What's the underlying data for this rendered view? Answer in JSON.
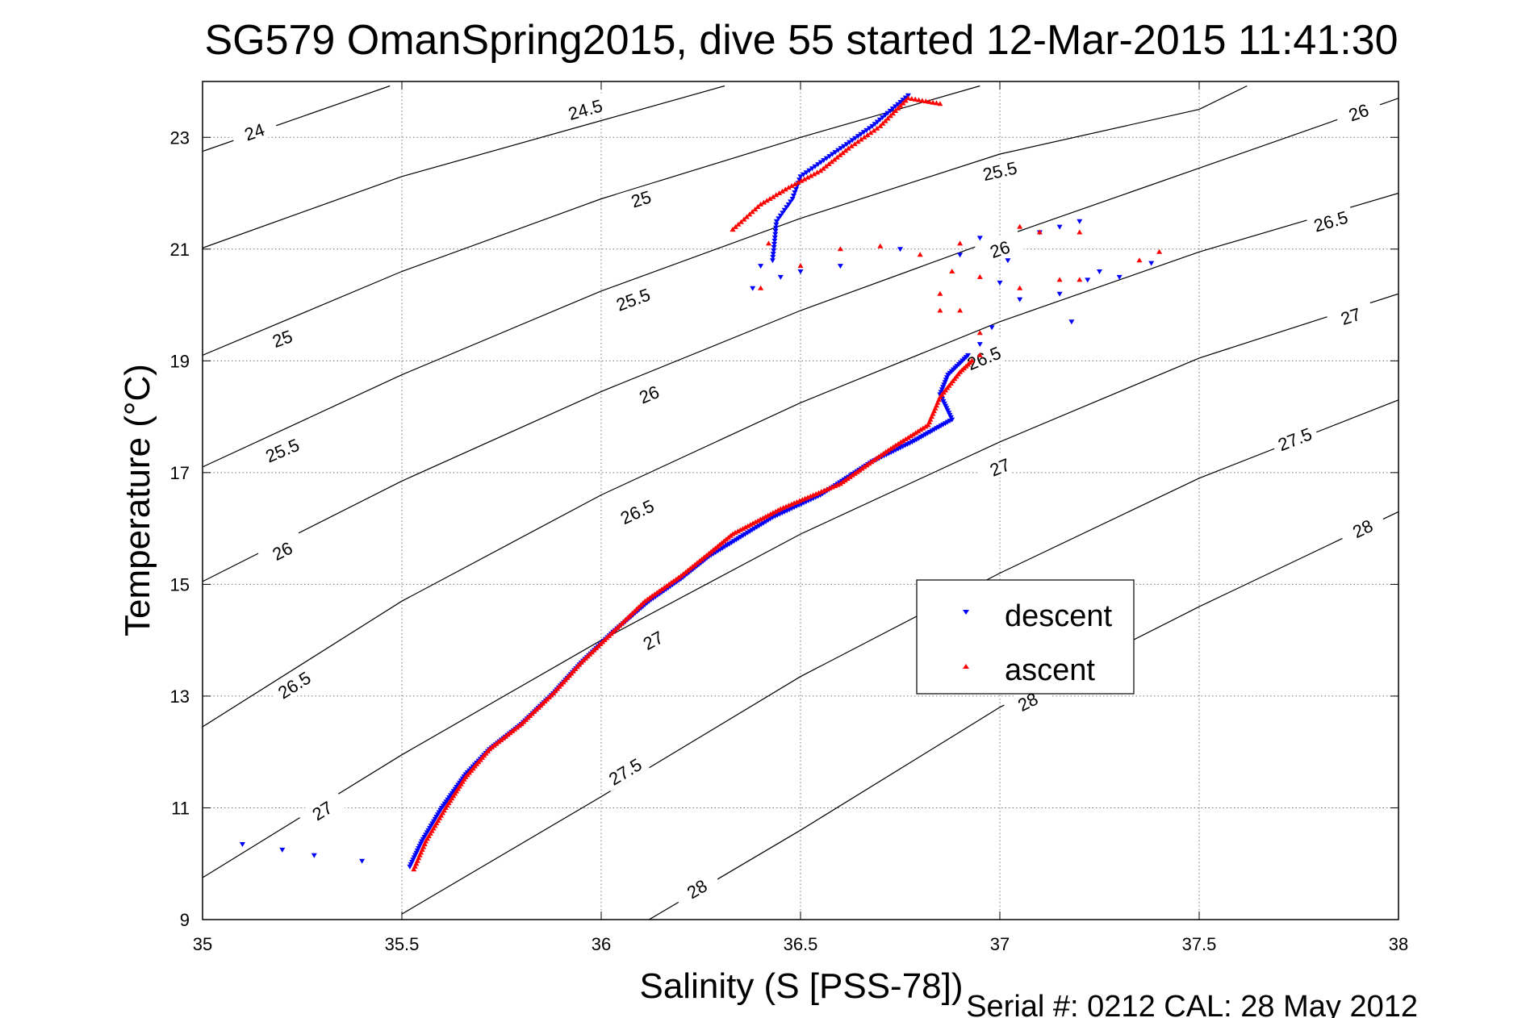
{
  "chart_data": {
    "type": "scatter",
    "title": "SG579 OmanSpring2015, dive 55 started 12-Mar-2015 11:41:30",
    "xlabel": "Salinity (S [PSS-78])",
    "ylabel": "Temperature (°C)",
    "footer": "Serial #: 0212  CAL: 28 May 2012",
    "xlim": [
      35,
      38
    ],
    "ylim": [
      9,
      24
    ],
    "xticks": [
      "35",
      "35.5",
      "36",
      "36.5",
      "37",
      "37.5",
      "38"
    ],
    "yticks": [
      "9",
      "11",
      "13",
      "15",
      "17",
      "19",
      "21",
      "23"
    ],
    "grid": "dotted",
    "legend_position": "center-right",
    "density_contours": [
      {
        "label": "24",
        "points": [
          [
            35.0,
            22.75
          ],
          [
            35.47,
            23.92
          ]
        ],
        "label_at": [
          35.13,
          23.1
        ]
      },
      {
        "label": "24.5",
        "points": [
          [
            35.0,
            21.02
          ],
          [
            35.5,
            22.3
          ],
          [
            36.0,
            23.3
          ],
          [
            36.31,
            23.92
          ]
        ],
        "label_at": [
          35.96,
          23.5
        ]
      },
      {
        "label": "25",
        "points": [
          [
            35.0,
            21.02
          ],
          [
            35.5,
            22.3
          ],
          [
            36.0,
            23.3
          ],
          [
            36.31,
            23.92
          ]
        ],
        "label_at": [
          35.2,
          19.4
        ]
      },
      {
        "label": "25",
        "points": [
          [
            35.0,
            19.1
          ],
          [
            35.5,
            20.6
          ],
          [
            36.0,
            21.9
          ],
          [
            36.5,
            23.0
          ],
          [
            36.95,
            23.92
          ]
        ],
        "label_at": [
          36.1,
          21.9
        ]
      },
      {
        "label": "25.5",
        "points": [
          [
            35.0,
            19.1
          ],
          [
            35.5,
            20.6
          ],
          [
            36.0,
            21.9
          ],
          [
            36.5,
            23.0
          ],
          [
            36.95,
            23.92
          ]
        ],
        "label_at": [
          35.2,
          17.4
        ]
      },
      {
        "label": "25.5",
        "points": [
          [
            35.0,
            17.1
          ],
          [
            35.5,
            18.75
          ],
          [
            36.0,
            20.25
          ],
          [
            36.5,
            21.55
          ],
          [
            37.0,
            22.7
          ],
          [
            37.5,
            23.5
          ],
          [
            37.62,
            23.92
          ]
        ],
        "label_at": [
          36.08,
          20.1
        ]
      },
      {
        "label": "25.5",
        "points": [
          [
            35.0,
            17.1
          ],
          [
            35.5,
            18.75
          ],
          [
            36.0,
            20.25
          ],
          [
            36.5,
            21.55
          ],
          [
            37.0,
            22.7
          ],
          [
            37.5,
            23.5
          ],
          [
            37.62,
            23.92
          ]
        ],
        "label_at": [
          37.0,
          22.4
        ]
      },
      {
        "label": "26",
        "points": [
          [
            35.0,
            15.05
          ],
          [
            35.5,
            16.85
          ],
          [
            36.0,
            18.45
          ],
          [
            36.5,
            19.9
          ],
          [
            37.0,
            21.2
          ],
          [
            37.5,
            22.45
          ],
          [
            38.0,
            23.7
          ]
        ],
        "label_at": [
          35.2,
          15.6
        ]
      },
      {
        "label": "26",
        "points": [
          [
            35.0,
            15.05
          ],
          [
            35.5,
            16.85
          ],
          [
            36.0,
            18.45
          ],
          [
            36.5,
            19.9
          ],
          [
            37.0,
            21.2
          ],
          [
            37.5,
            22.45
          ],
          [
            38.0,
            23.7
          ]
        ],
        "label_at": [
          36.12,
          18.4
        ]
      },
      {
        "label": "26",
        "points": [
          [
            35.0,
            15.05
          ],
          [
            35.5,
            16.85
          ],
          [
            36.0,
            18.45
          ],
          [
            36.5,
            19.9
          ],
          [
            37.0,
            21.2
          ],
          [
            37.5,
            22.45
          ],
          [
            38.0,
            23.7
          ]
        ],
        "label_at": [
          37.0,
          21.0
        ]
      },
      {
        "label": "26",
        "points": [
          [
            35.0,
            15.05
          ],
          [
            35.5,
            16.85
          ],
          [
            36.0,
            18.45
          ],
          [
            36.5,
            19.9
          ],
          [
            37.0,
            21.2
          ],
          [
            37.5,
            22.45
          ],
          [
            38.0,
            23.7
          ]
        ],
        "label_at": [
          37.9,
          23.45
        ]
      },
      {
        "label": "26.5",
        "points": [
          [
            35.0,
            12.45
          ],
          [
            35.5,
            14.7
          ],
          [
            36.0,
            16.6
          ],
          [
            36.5,
            18.25
          ],
          [
            37.0,
            19.7
          ],
          [
            37.5,
            20.95
          ],
          [
            38.0,
            22.0
          ]
        ],
        "label_at": [
          35.23,
          13.2
        ]
      },
      {
        "label": "26.5",
        "points": [
          [
            35.0,
            12.45
          ],
          [
            35.5,
            14.7
          ],
          [
            36.0,
            16.6
          ],
          [
            36.5,
            18.25
          ],
          [
            37.0,
            19.7
          ],
          [
            37.5,
            20.95
          ],
          [
            38.0,
            22.0
          ]
        ],
        "label_at": [
          36.09,
          16.3
        ]
      },
      {
        "label": "26.5",
        "points": [
          [
            35.0,
            12.45
          ],
          [
            35.5,
            14.7
          ],
          [
            36.0,
            16.6
          ],
          [
            36.5,
            18.25
          ],
          [
            37.0,
            19.7
          ],
          [
            37.5,
            20.95
          ],
          [
            38.0,
            22.0
          ]
        ],
        "label_at": [
          36.96,
          19.05
        ]
      },
      {
        "label": "26.5",
        "points": [
          [
            35.0,
            12.45
          ],
          [
            35.5,
            14.7
          ],
          [
            36.0,
            16.6
          ],
          [
            36.5,
            18.25
          ],
          [
            37.0,
            19.7
          ],
          [
            37.5,
            20.95
          ],
          [
            38.0,
            22.0
          ]
        ],
        "label_at": [
          37.83,
          21.5
        ]
      },
      {
        "label": "27",
        "points": [
          [
            35.0,
            9.75
          ],
          [
            35.5,
            11.95
          ],
          [
            36.0,
            14.0
          ],
          [
            36.5,
            15.9
          ],
          [
            37.0,
            17.55
          ],
          [
            37.5,
            19.05
          ],
          [
            38.0,
            20.2
          ]
        ],
        "label_at": [
          35.3,
          10.95
        ]
      },
      {
        "label": "27",
        "points": [
          [
            35.0,
            9.75
          ],
          [
            35.5,
            11.95
          ],
          [
            36.0,
            14.0
          ],
          [
            36.5,
            15.9
          ],
          [
            37.0,
            17.55
          ],
          [
            37.5,
            19.05
          ],
          [
            38.0,
            20.2
          ]
        ],
        "label_at": [
          36.13,
          14.0
        ]
      },
      {
        "label": "27",
        "points": [
          [
            35.0,
            9.75
          ],
          [
            35.5,
            11.95
          ],
          [
            36.0,
            14.0
          ],
          [
            36.5,
            15.9
          ],
          [
            37.0,
            17.55
          ],
          [
            37.5,
            19.05
          ],
          [
            38.0,
            20.2
          ]
        ],
        "label_at": [
          37.0,
          17.1
        ]
      },
      {
        "label": "27",
        "points": [
          [
            35.0,
            9.75
          ],
          [
            35.5,
            11.95
          ],
          [
            36.0,
            14.0
          ],
          [
            36.5,
            15.9
          ],
          [
            37.0,
            17.55
          ],
          [
            37.5,
            19.05
          ],
          [
            38.0,
            20.2
          ]
        ],
        "label_at": [
          37.88,
          19.8
        ]
      },
      {
        "label": "27.5",
        "points": [
          [
            35.5,
            9.1
          ],
          [
            36.0,
            11.2
          ],
          [
            36.5,
            13.35
          ],
          [
            37.0,
            15.2
          ],
          [
            37.5,
            16.9
          ],
          [
            38.0,
            18.3
          ]
        ],
        "label_at": [
          36.06,
          11.65
        ]
      },
      {
        "label": "27.5",
        "points": [
          [
            35.5,
            9.1
          ],
          [
            36.0,
            11.2
          ],
          [
            36.5,
            13.35
          ],
          [
            37.0,
            15.2
          ],
          [
            37.5,
            16.9
          ],
          [
            38.0,
            18.3
          ]
        ],
        "label_at": [
          37.74,
          17.6
        ]
      },
      {
        "label": "28",
        "points": [
          [
            36.12,
            9.0
          ],
          [
            36.5,
            10.6
          ],
          [
            37.0,
            12.8
          ],
          [
            37.5,
            14.6
          ],
          [
            38.0,
            16.3
          ]
        ],
        "label_at": [
          36.24,
          9.55
        ]
      },
      {
        "label": "28",
        "points": [
          [
            36.12,
            9.0
          ],
          [
            36.5,
            10.6
          ],
          [
            37.0,
            12.8
          ],
          [
            37.5,
            14.6
          ],
          [
            38.0,
            16.3
          ]
        ],
        "label_at": [
          37.07,
          12.9
        ]
      },
      {
        "label": "28",
        "points": [
          [
            36.12,
            9.0
          ],
          [
            36.5,
            10.6
          ],
          [
            37.0,
            12.8
          ],
          [
            37.5,
            14.6
          ],
          [
            38.0,
            16.3
          ]
        ],
        "label_at": [
          37.91,
          16.0
        ]
      }
    ],
    "series": [
      {
        "name": "descent",
        "color": "#0000ff",
        "marker": "triangle-down",
        "path": [
          [
            35.52,
            9.95
          ],
          [
            35.55,
            10.4
          ],
          [
            35.6,
            11.0
          ],
          [
            35.66,
            11.6
          ],
          [
            35.72,
            12.05
          ],
          [
            35.8,
            12.5
          ],
          [
            35.88,
            13.05
          ],
          [
            35.95,
            13.6
          ],
          [
            36.03,
            14.15
          ],
          [
            36.12,
            14.7
          ],
          [
            36.2,
            15.1
          ],
          [
            36.27,
            15.5
          ],
          [
            36.35,
            15.85
          ],
          [
            36.43,
            16.2
          ],
          [
            36.55,
            16.6
          ],
          [
            36.68,
            17.2
          ],
          [
            36.78,
            17.55
          ],
          [
            36.88,
            17.95
          ],
          [
            36.85,
            18.4
          ],
          [
            36.87,
            18.75
          ],
          [
            36.92,
            19.1
          ]
        ],
        "scatter": [
          [
            35.1,
            10.35
          ],
          [
            35.2,
            10.25
          ],
          [
            35.28,
            10.15
          ],
          [
            35.4,
            10.05
          ],
          [
            36.38,
            20.3
          ],
          [
            36.45,
            20.5
          ],
          [
            36.4,
            20.7
          ],
          [
            36.5,
            20.6
          ],
          [
            36.6,
            20.7
          ],
          [
            36.75,
            21.0
          ],
          [
            36.9,
            20.9
          ],
          [
            37.02,
            20.8
          ],
          [
            37.05,
            20.1
          ],
          [
            37.0,
            20.4
          ],
          [
            37.15,
            20.2
          ],
          [
            37.22,
            20.45
          ],
          [
            37.3,
            20.5
          ],
          [
            37.18,
            19.7
          ],
          [
            37.1,
            21.3
          ],
          [
            37.2,
            21.5
          ],
          [
            37.15,
            21.4
          ],
          [
            36.95,
            21.2
          ],
          [
            37.38,
            20.75
          ],
          [
            37.25,
            20.6
          ],
          [
            36.98,
            19.6
          ],
          [
            36.95,
            19.3
          ]
        ],
        "upper_path": [
          [
            36.43,
            20.8
          ],
          [
            36.44,
            21.5
          ],
          [
            36.48,
            21.9
          ],
          [
            36.5,
            22.3
          ],
          [
            36.58,
            22.7
          ],
          [
            36.68,
            23.2
          ],
          [
            36.77,
            23.75
          ]
        ]
      },
      {
        "name": "ascent",
        "color": "#ff0000",
        "marker": "triangle-up",
        "path": [
          [
            35.53,
            9.9
          ],
          [
            35.56,
            10.4
          ],
          [
            35.61,
            11.0
          ],
          [
            35.66,
            11.55
          ],
          [
            35.72,
            12.05
          ],
          [
            35.8,
            12.5
          ],
          [
            35.88,
            13.05
          ],
          [
            35.95,
            13.6
          ],
          [
            36.03,
            14.15
          ],
          [
            36.11,
            14.7
          ],
          [
            36.2,
            15.15
          ],
          [
            36.27,
            15.55
          ],
          [
            36.33,
            15.9
          ],
          [
            36.45,
            16.35
          ],
          [
            36.6,
            16.8
          ],
          [
            36.72,
            17.4
          ],
          [
            36.82,
            17.85
          ],
          [
            36.85,
            18.35
          ],
          [
            36.9,
            18.8
          ],
          [
            36.93,
            19.0
          ]
        ],
        "scatter": [
          [
            36.95,
            19.5
          ],
          [
            36.9,
            19.9
          ],
          [
            36.85,
            20.2
          ],
          [
            36.88,
            20.6
          ],
          [
            36.8,
            20.9
          ],
          [
            36.9,
            21.1
          ],
          [
            37.05,
            21.4
          ],
          [
            37.1,
            21.3
          ],
          [
            37.2,
            21.3
          ],
          [
            37.35,
            20.8
          ],
          [
            37.4,
            20.95
          ],
          [
            37.2,
            20.45
          ],
          [
            37.15,
            20.45
          ],
          [
            37.05,
            20.3
          ],
          [
            36.95,
            20.5
          ],
          [
            36.85,
            19.9
          ],
          [
            36.95,
            19.1
          ],
          [
            36.4,
            20.3
          ],
          [
            36.5,
            20.7
          ],
          [
            36.42,
            21.1
          ],
          [
            36.33,
            21.35
          ],
          [
            36.6,
            21.0
          ],
          [
            36.7,
            21.05
          ]
        ],
        "upper_path": [
          [
            36.33,
            21.35
          ],
          [
            36.4,
            21.8
          ],
          [
            36.47,
            22.1
          ],
          [
            36.55,
            22.4
          ],
          [
            36.62,
            22.8
          ],
          [
            36.7,
            23.2
          ],
          [
            36.77,
            23.7
          ],
          [
            36.85,
            23.6
          ]
        ]
      }
    ]
  }
}
